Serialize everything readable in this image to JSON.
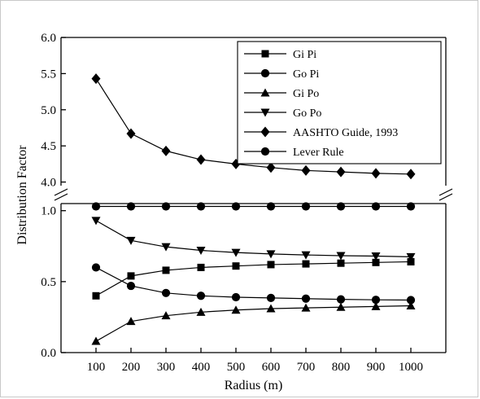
{
  "chart_data": {
    "type": "line",
    "xlabel": "Radius (m)",
    "ylabel": "Distribution Factor",
    "x": [
      100,
      200,
      300,
      400,
      500,
      600,
      700,
      800,
      900,
      1000
    ],
    "xticks": [
      "100",
      "200",
      "300",
      "400",
      "500",
      "600",
      "700",
      "800",
      "900",
      "1000"
    ],
    "xlim": [
      0,
      1100
    ],
    "axis_break": true,
    "ylim_lower": [
      0.0,
      1.05
    ],
    "ylim_upper": [
      3.95,
      6.0
    ],
    "yticks_lower": [
      "0.0",
      "0.5",
      "1.0"
    ],
    "yticks_upper": [
      "4.0",
      "4.5",
      "5.0",
      "5.5",
      "6.0"
    ],
    "grid": false,
    "legend_position": "top-right",
    "series": [
      {
        "name": "Gi Pi",
        "marker": "square",
        "values": [
          0.4,
          0.54,
          0.58,
          0.6,
          0.61,
          0.62,
          0.625,
          0.63,
          0.635,
          0.64
        ]
      },
      {
        "name": "Go Pi",
        "marker": "circle",
        "values": [
          0.6,
          0.47,
          0.42,
          0.4,
          0.39,
          0.385,
          0.38,
          0.375,
          0.372,
          0.37
        ]
      },
      {
        "name": "Gi Po",
        "marker": "triangle-up",
        "values": [
          0.08,
          0.22,
          0.26,
          0.285,
          0.3,
          0.31,
          0.315,
          0.32,
          0.325,
          0.33
        ]
      },
      {
        "name": "Go Po",
        "marker": "triangle-down",
        "values": [
          0.93,
          0.79,
          0.745,
          0.72,
          0.705,
          0.695,
          0.688,
          0.683,
          0.68,
          0.675
        ]
      },
      {
        "name": "AASHTO Guide, 1993",
        "marker": "diamond",
        "values": [
          5.43,
          4.67,
          4.43,
          4.31,
          4.25,
          4.2,
          4.16,
          4.14,
          4.12,
          4.11
        ]
      },
      {
        "name": "Lever Rule",
        "marker": "circle",
        "values": [
          1.03,
          1.03,
          1.03,
          1.03,
          1.03,
          1.03,
          1.03,
          1.03,
          1.03,
          1.03
        ]
      }
    ]
  }
}
